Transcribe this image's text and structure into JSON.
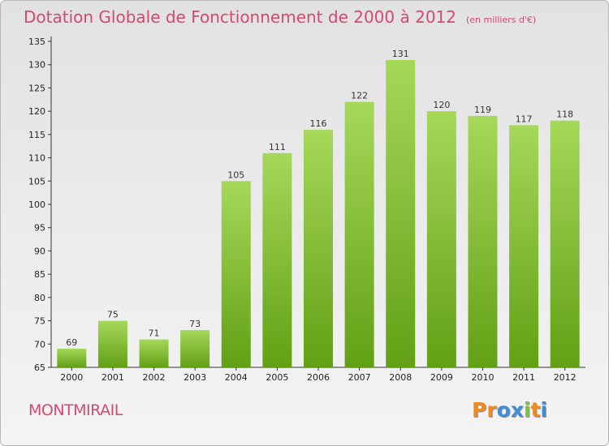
{
  "page": {
    "title": "Dotation Globale de Fonctionnement de 2000 à 2012",
    "unit": "(en milliers d'€)",
    "city": "MONTMIRAIL",
    "logo": [
      "P",
      "r",
      "o",
      "x",
      "i",
      "t",
      "i"
    ]
  },
  "colors": {
    "title": "#d44a6e",
    "bar_top": "#a6d85a",
    "bar_bottom": "#62a014",
    "logo": [
      "#f08a1c",
      "#f08a1c",
      "#3d8fd6",
      "#3d8fd6",
      "#7cc242",
      "#f08a1c",
      "#3d8fd6"
    ]
  },
  "chart_data": {
    "type": "bar",
    "title": "Dotation Globale de Fonctionnement de 2000 à 2012",
    "xlabel": "",
    "ylabel": "",
    "categories": [
      "2000",
      "2001",
      "2002",
      "2003",
      "2004",
      "2005",
      "2006",
      "2007",
      "2008",
      "2009",
      "2010",
      "2011",
      "2012"
    ],
    "values": [
      69,
      75,
      71,
      73,
      105,
      111,
      116,
      122,
      131,
      120,
      119,
      117,
      118
    ],
    "ylim": [
      65,
      135
    ],
    "yticks": [
      65,
      70,
      75,
      80,
      85,
      90,
      95,
      100,
      105,
      110,
      115,
      120,
      125,
      130,
      135
    ],
    "grid": false
  }
}
